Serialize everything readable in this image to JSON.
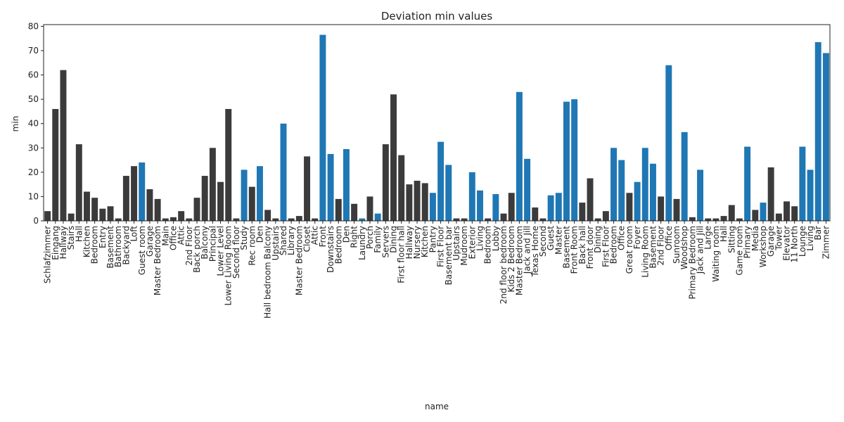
{
  "chart_data": {
    "type": "bar",
    "title": "Deviation min values",
    "xlabel": "name",
    "ylabel": "min",
    "categories": [
      "Schlafzimmer",
      "Eingang",
      "Hallway",
      "Stairs",
      "Hall",
      "Kitchen",
      "Bedroom",
      "Entry",
      "Basement",
      "Bathroom",
      "Backyard",
      "Loft",
      "Guest room",
      "Garage",
      "Master Bedroom",
      "Main",
      "Office",
      "Attic",
      "2nd Floor",
      "Back porch",
      "Balcony",
      "Principal",
      "Lower Level",
      "Lower Living Room",
      "Second floor",
      "Study",
      "Rec room",
      "Den",
      "Hall bedroom Balcony",
      "Upstairs",
      "Shared",
      "Library",
      "Master Bedroom",
      "Closet",
      "Attic",
      "Front",
      "Downstairs",
      "Bedroom",
      "Den",
      "Right",
      "Laundry",
      "Porch",
      "Family",
      "Servers",
      "Dining",
      "First floor hall",
      "Hallway",
      "Nursery",
      "Kitchen",
      "Pantry",
      "First Floor",
      "Basement bar",
      "Upstairs",
      "Mudroom",
      "Exterior",
      "Living",
      "Bedroom",
      "Lobby",
      "2nd floor bedroom",
      "Kids 2 Bedroom",
      "Master Bedroom",
      "Jack and Jill",
      "Texas Home",
      "Second",
      "Guest",
      "Master",
      "Basement",
      "Front Room",
      "Back hall",
      "Front door",
      "Dining",
      "First Floor",
      "Bedroom",
      "Office",
      "Great room",
      "Foyer",
      "Living Room",
      "Basement",
      "2nd Floor",
      "Office",
      "Sunroom",
      "Woodshop",
      "Primary Bedroom",
      "Jack and Jill",
      "Large",
      "Waiting room",
      "Hall",
      "Sitting",
      "Game room",
      "Primary",
      "Media",
      "Workshop",
      "Garage",
      "Tower",
      "Elevator",
      "11 North",
      "Lounge",
      "Living",
      "Bar",
      "Zimmer"
    ],
    "values": [
      4,
      46,
      62,
      3,
      31.5,
      12,
      9.5,
      5,
      6,
      1,
      18.5,
      22.5,
      24,
      13,
      9,
      1,
      1.5,
      4,
      1,
      9.5,
      18.5,
      30,
      16,
      46,
      1,
      21,
      14,
      22.5,
      4.5,
      1,
      40,
      1,
      2,
      26.5,
      1,
      76.5,
      27.5,
      9,
      29.5,
      7,
      1,
      10,
      3,
      31.5,
      52,
      27,
      15,
      16.5,
      15.5,
      11.5,
      32.5,
      23,
      1,
      1,
      20,
      12.5,
      1,
      11,
      3,
      11.5,
      53,
      25.5,
      5.5,
      1,
      10.5,
      11.5,
      49,
      50,
      7.5,
      17.5,
      1,
      4,
      30,
      25,
      11.5,
      16,
      30,
      23.5,
      10,
      64,
      9,
      36.5,
      1.5,
      21,
      1,
      1,
      2,
      6.5,
      1,
      30.5,
      4.5,
      7.5,
      22,
      3,
      8,
      6,
      30.5,
      21,
      73.5,
      69
    ],
    "colors": [
      "#3b3b3b",
      "#3b3b3b",
      "#3b3b3b",
      "#3b3b3b",
      "#3b3b3b",
      "#3b3b3b",
      "#3b3b3b",
      "#3b3b3b",
      "#3b3b3b",
      "#3b3b3b",
      "#3b3b3b",
      "#3b3b3b",
      "#1f77b4",
      "#3b3b3b",
      "#3b3b3b",
      "#3b3b3b",
      "#3b3b3b",
      "#3b3b3b",
      "#3b3b3b",
      "#3b3b3b",
      "#3b3b3b",
      "#3b3b3b",
      "#3b3b3b",
      "#3b3b3b",
      "#3b3b3b",
      "#1f77b4",
      "#3b3b3b",
      "#1f77b4",
      "#3b3b3b",
      "#3b3b3b",
      "#1f77b4",
      "#3b3b3b",
      "#3b3b3b",
      "#3b3b3b",
      "#3b3b3b",
      "#1f77b4",
      "#1f77b4",
      "#3b3b3b",
      "#1f77b4",
      "#3b3b3b",
      "#1f77b4",
      "#3b3b3b",
      "#1f77b4",
      "#3b3b3b",
      "#3b3b3b",
      "#3b3b3b",
      "#3b3b3b",
      "#3b3b3b",
      "#3b3b3b",
      "#1f77b4",
      "#1f77b4",
      "#1f77b4",
      "#3b3b3b",
      "#3b3b3b",
      "#1f77b4",
      "#1f77b4",
      "#3b3b3b",
      "#1f77b4",
      "#3b3b3b",
      "#3b3b3b",
      "#1f77b4",
      "#1f77b4",
      "#3b3b3b",
      "#3b3b3b",
      "#1f77b4",
      "#1f77b4",
      "#1f77b4",
      "#1f77b4",
      "#3b3b3b",
      "#3b3b3b",
      "#3b3b3b",
      "#3b3b3b",
      "#1f77b4",
      "#1f77b4",
      "#3b3b3b",
      "#1f77b4",
      "#1f77b4",
      "#1f77b4",
      "#3b3b3b",
      "#1f77b4",
      "#3b3b3b",
      "#1f77b4",
      "#3b3b3b",
      "#1f77b4",
      "#3b3b3b",
      "#3b3b3b",
      "#3b3b3b",
      "#3b3b3b",
      "#3b3b3b",
      "#1f77b4",
      "#3b3b3b",
      "#1f77b4",
      "#3b3b3b",
      "#3b3b3b",
      "#3b3b3b",
      "#3b3b3b",
      "#1f77b4",
      "#1f77b4",
      "#1f77b4",
      "#1f77b4"
    ],
    "ylim": [
      0,
      80.7
    ],
    "yticks": [
      0,
      10,
      20,
      30,
      40,
      50,
      60,
      70,
      80
    ],
    "grid": false
  }
}
